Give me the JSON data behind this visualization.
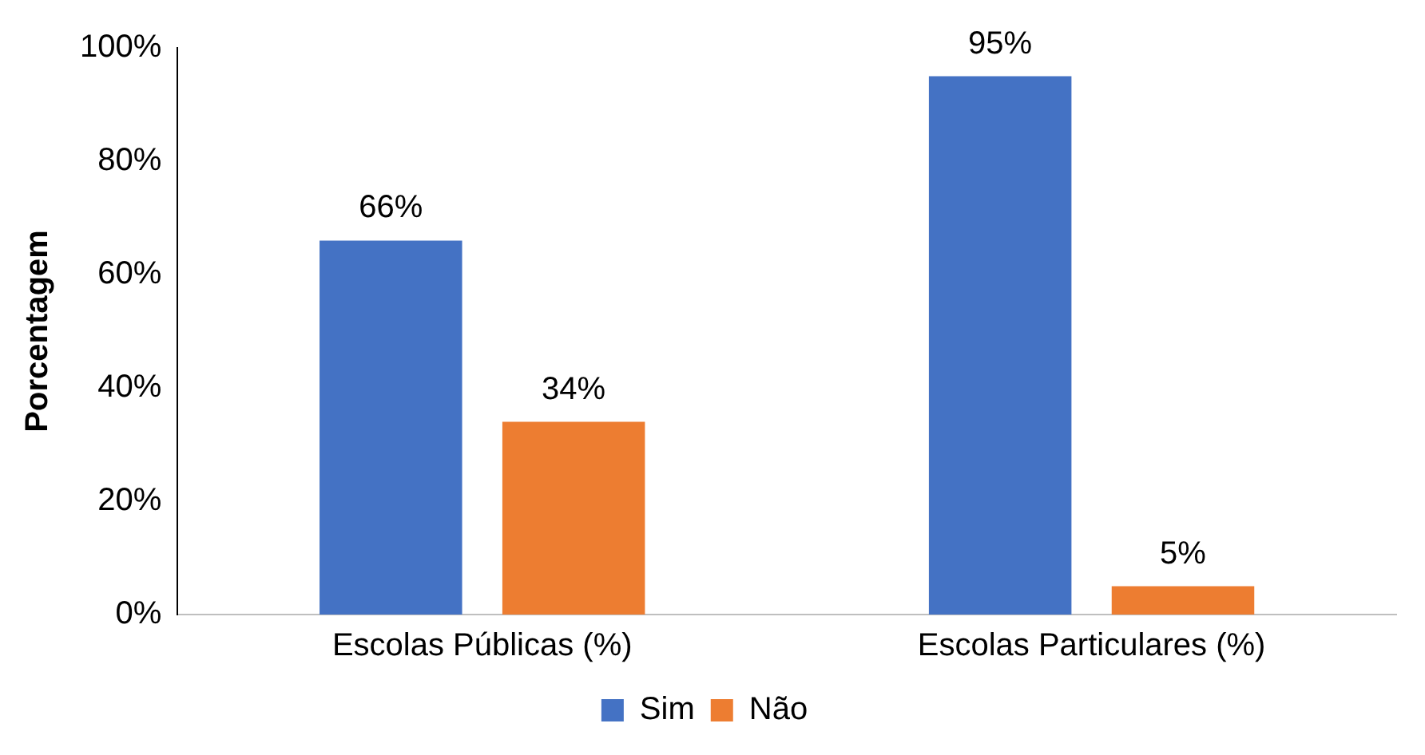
{
  "chart_data": {
    "type": "bar",
    "ylabel": "Porcentagem",
    "categories": [
      "Escolas Públicas (%)",
      "Escolas Particulares (%)"
    ],
    "series": [
      {
        "name": "Sim",
        "color": "#4472c4",
        "values": [
          66,
          95
        ],
        "value_labels": [
          "66%",
          "95%"
        ]
      },
      {
        "name": "Não",
        "color": "#ed7d31",
        "values": [
          34,
          5
        ],
        "value_labels": [
          "34%",
          "5%"
        ]
      }
    ],
    "ylim": [
      0,
      100
    ],
    "yticks": [
      {
        "value": 0,
        "label": "0%"
      },
      {
        "value": 20,
        "label": "20%"
      },
      {
        "value": 40,
        "label": "40%"
      },
      {
        "value": 60,
        "label": "60%"
      },
      {
        "value": 80,
        "label": "80%"
      },
      {
        "value": 100,
        "label": "100%"
      }
    ],
    "grid": false,
    "legend": "bottom"
  }
}
